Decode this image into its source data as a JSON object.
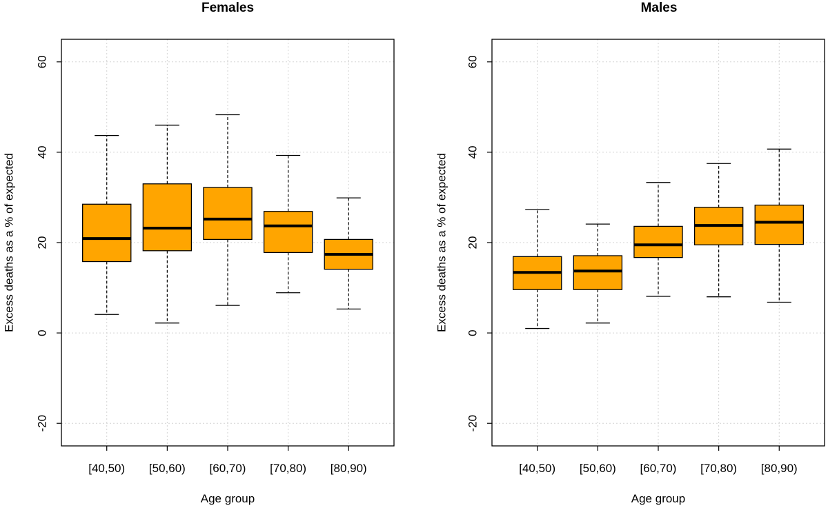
{
  "chart_data": [
    {
      "type": "boxplot",
      "title": "Females",
      "xlabel": "Age group",
      "ylabel": "Excess deaths as a % of expected",
      "ylim": [
        -25,
        65
      ],
      "yticks": [
        -20,
        0,
        20,
        40,
        60
      ],
      "grid": true,
      "box_color": "#FFA500",
      "categories": [
        "[40,50)",
        "[50,60)",
        "[60,70)",
        "[70,80)",
        "[80,90)"
      ],
      "boxes": [
        {
          "whisker_low": 4.1,
          "q1": 15.8,
          "median": 20.9,
          "q3": 28.5,
          "whisker_high": 43.7
        },
        {
          "whisker_low": 2.2,
          "q1": 18.2,
          "median": 23.2,
          "q3": 33.0,
          "whisker_high": 46.0
        },
        {
          "whisker_low": 6.1,
          "q1": 20.7,
          "median": 25.2,
          "q3": 32.2,
          "whisker_high": 48.3
        },
        {
          "whisker_low": 8.9,
          "q1": 17.8,
          "median": 23.7,
          "q3": 26.9,
          "whisker_high": 39.3
        },
        {
          "whisker_low": 5.3,
          "q1": 14.1,
          "median": 17.4,
          "q3": 20.7,
          "whisker_high": 29.9
        }
      ]
    },
    {
      "type": "boxplot",
      "title": "Males",
      "xlabel": "Age group",
      "ylabel": "Excess deaths as a % of expected",
      "ylim": [
        -25,
        65
      ],
      "yticks": [
        -20,
        0,
        20,
        40,
        60
      ],
      "grid": true,
      "box_color": "#FFA500",
      "categories": [
        "[40,50)",
        "[50,60)",
        "[60,70)",
        "[70,80)",
        "[80,90)"
      ],
      "boxes": [
        {
          "whisker_low": 1.0,
          "q1": 9.6,
          "median": 13.4,
          "q3": 16.9,
          "whisker_high": 27.3
        },
        {
          "whisker_low": 2.2,
          "q1": 9.6,
          "median": 13.7,
          "q3": 17.1,
          "whisker_high": 24.1
        },
        {
          "whisker_low": 8.1,
          "q1": 16.7,
          "median": 19.5,
          "q3": 23.6,
          "whisker_high": 33.3
        },
        {
          "whisker_low": 8.0,
          "q1": 19.5,
          "median": 23.8,
          "q3": 27.8,
          "whisker_high": 37.5
        },
        {
          "whisker_low": 6.8,
          "q1": 19.6,
          "median": 24.5,
          "q3": 28.3,
          "whisker_high": 40.7
        }
      ]
    }
  ]
}
